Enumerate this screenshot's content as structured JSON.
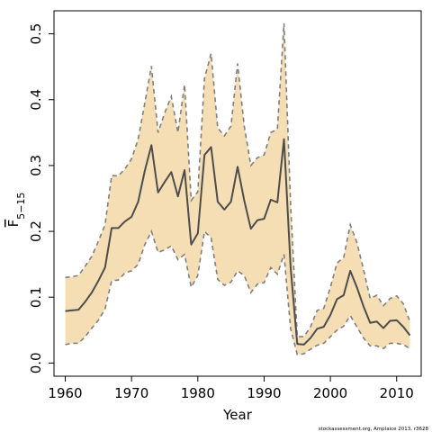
{
  "chart_data": {
    "type": "line",
    "title": "",
    "xlabel": "Year",
    "ylabel": {
      "base": "F",
      "sub": "5−15"
    },
    "xlim": [
      1958.3,
      2013.7
    ],
    "ylim": [
      -0.02,
      0.535
    ],
    "xticks": [
      1960,
      1970,
      1980,
      1990,
      2000,
      2010
    ],
    "yticks": [
      0.0,
      0.1,
      0.2,
      0.3,
      0.4,
      0.5
    ],
    "ytick_labels": [
      "0.0",
      "0.1",
      "0.2",
      "0.3",
      "0.4",
      "0.5"
    ],
    "grid": false,
    "colors": {
      "band": "#f5deb3",
      "band_border": "#7f7f7f",
      "line": "#4d4d4d",
      "axis": "#000000"
    },
    "credit": "stockassessment.org, Amplaice  2013, r3628",
    "x": [
      1960,
      1961,
      1962,
      1963,
      1964,
      1965,
      1966,
      1967,
      1968,
      1969,
      1970,
      1971,
      1972,
      1973,
      1974,
      1975,
      1976,
      1977,
      1978,
      1979,
      1980,
      1981,
      1982,
      1983,
      1984,
      1985,
      1986,
      1987,
      1988,
      1989,
      1990,
      1991,
      1992,
      1993,
      1994,
      1995,
      1996,
      1997,
      1998,
      1999,
      2000,
      2001,
      2002,
      2003,
      2004,
      2005,
      2006,
      2007,
      2008,
      2009,
      2010,
      2011,
      2012
    ],
    "series": [
      {
        "role": "estimate",
        "values": [
          0.079,
          0.08,
          0.081,
          0.093,
          0.107,
          0.125,
          0.145,
          0.205,
          0.205,
          0.215,
          0.222,
          0.245,
          0.292,
          0.331,
          0.259,
          0.275,
          0.29,
          0.253,
          0.293,
          0.18,
          0.197,
          0.316,
          0.328,
          0.245,
          0.233,
          0.245,
          0.298,
          0.247,
          0.204,
          0.217,
          0.219,
          0.248,
          0.244,
          0.34,
          0.145,
          0.029,
          0.028,
          0.038,
          0.052,
          0.055,
          0.073,
          0.097,
          0.103,
          0.14,
          0.115,
          0.086,
          0.061,
          0.063,
          0.053,
          0.064,
          0.065,
          0.055,
          0.042
        ]
      },
      {
        "role": "upper",
        "values": [
          0.13,
          0.131,
          0.133,
          0.147,
          0.162,
          0.185,
          0.21,
          0.285,
          0.284,
          0.295,
          0.31,
          0.34,
          0.395,
          0.451,
          0.35,
          0.38,
          0.405,
          0.35,
          0.423,
          0.247,
          0.26,
          0.432,
          0.47,
          0.357,
          0.345,
          0.36,
          0.455,
          0.36,
          0.3,
          0.312,
          0.316,
          0.35,
          0.355,
          0.516,
          0.24,
          0.04,
          0.04,
          0.055,
          0.08,
          0.083,
          0.115,
          0.152,
          0.16,
          0.21,
          0.183,
          0.142,
          0.098,
          0.103,
          0.087,
          0.098,
          0.102,
          0.09,
          0.063
        ]
      },
      {
        "role": "lower",
        "values": [
          0.028,
          0.03,
          0.03,
          0.04,
          0.053,
          0.065,
          0.082,
          0.125,
          0.126,
          0.137,
          0.14,
          0.15,
          0.18,
          0.2,
          0.168,
          0.172,
          0.178,
          0.157,
          0.165,
          0.115,
          0.133,
          0.2,
          0.19,
          0.127,
          0.118,
          0.123,
          0.14,
          0.133,
          0.107,
          0.12,
          0.122,
          0.145,
          0.135,
          0.165,
          0.052,
          0.013,
          0.014,
          0.021,
          0.027,
          0.03,
          0.04,
          0.05,
          0.056,
          0.072,
          0.055,
          0.038,
          0.026,
          0.026,
          0.022,
          0.03,
          0.03,
          0.028,
          0.022
        ]
      }
    ]
  }
}
